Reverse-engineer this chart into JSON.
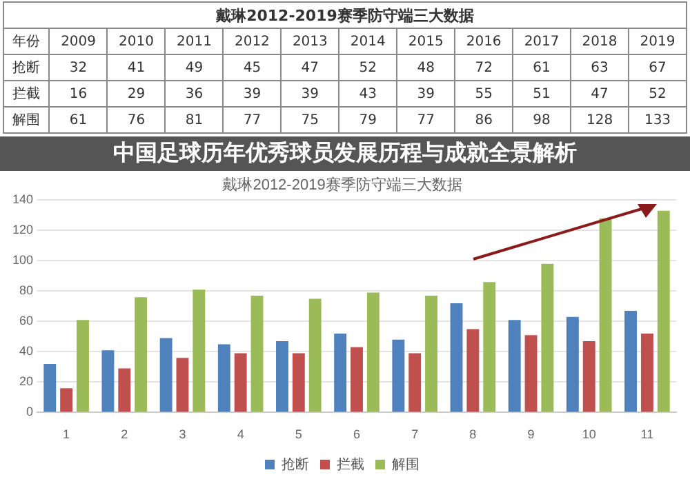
{
  "chart_data": {
    "type": "bar",
    "title": "戴琳2012-2019赛季防守端三大数据",
    "categories": [
      "1",
      "2",
      "3",
      "4",
      "5",
      "6",
      "7",
      "8",
      "9",
      "10",
      "11"
    ],
    "series": [
      {
        "name": "抢断",
        "color": "#4f81bd",
        "values": [
          32,
          41,
          49,
          45,
          47,
          52,
          48,
          72,
          61,
          63,
          67
        ]
      },
      {
        "name": "拦截",
        "color": "#c0504d",
        "values": [
          16,
          29,
          36,
          39,
          39,
          43,
          39,
          55,
          51,
          47,
          52
        ]
      },
      {
        "name": "解围",
        "color": "#9bbb59",
        "values": [
          61,
          76,
          81,
          77,
          75,
          79,
          77,
          86,
          98,
          128,
          133
        ]
      }
    ],
    "ylim": [
      0,
      140
    ],
    "yticks": [
      0,
      20,
      40,
      60,
      80,
      100,
      120,
      140
    ],
    "grid": "y",
    "legend": "bottom",
    "data_labels": true,
    "annotations": [
      "戴琳2012-2019赛季防守端三大数据",
      "年份",
      "中国足球历年优秀球员发展历程与成就全景解析",
      "2009",
      "2010",
      "2011",
      "2012",
      "2013",
      "2014",
      "2015",
      "2016",
      "2017",
      "2018",
      "2019"
    ]
  }
}
